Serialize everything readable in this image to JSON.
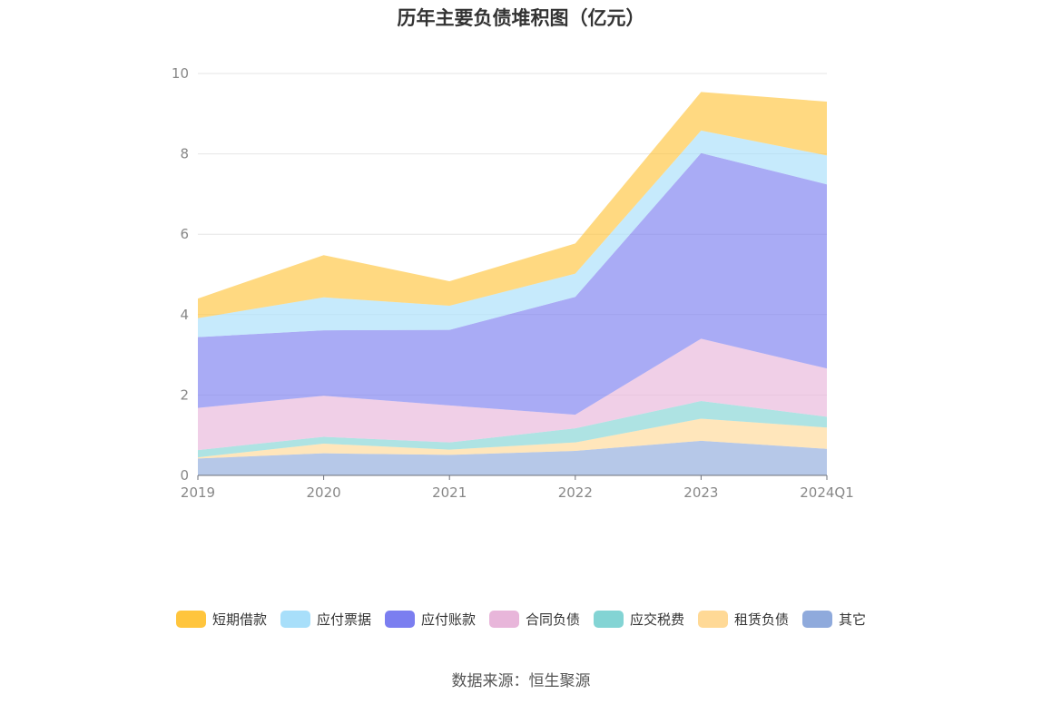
{
  "chart_data": {
    "type": "area",
    "stacked": true,
    "title": "历年主要负债堆积图（亿元）",
    "categories": [
      "2019",
      "2020",
      "2021",
      "2022",
      "2023",
      "2024Q1"
    ],
    "ylim": [
      0,
      10
    ],
    "yticks": [
      0,
      2,
      4,
      6,
      8,
      10
    ],
    "grid": true,
    "legend_position": "bottom",
    "series": [
      {
        "name": "其它",
        "color": "#8FAADC",
        "values": [
          0.42,
          0.55,
          0.51,
          0.61,
          0.86,
          0.66
        ]
      },
      {
        "name": "租赁负债",
        "color": "#FFD996",
        "values": [
          0.03,
          0.24,
          0.13,
          0.21,
          0.55,
          0.53
        ]
      },
      {
        "name": "应交税费",
        "color": "#83D4D4",
        "values": [
          0.18,
          0.17,
          0.18,
          0.35,
          0.44,
          0.27
        ]
      },
      {
        "name": "合同负债",
        "color": "#E8B6DA",
        "values": [
          1.05,
          1.02,
          0.92,
          0.34,
          1.55,
          1.2
        ]
      },
      {
        "name": "应付账款",
        "color": "#7B7EF0",
        "values": [
          1.76,
          1.63,
          1.88,
          2.93,
          4.62,
          4.58
        ]
      },
      {
        "name": "应付票据",
        "color": "#A8DFFA",
        "values": [
          0.47,
          0.82,
          0.6,
          0.58,
          0.56,
          0.72
        ]
      },
      {
        "name": "短期借款",
        "color": "#FFC53D",
        "values": [
          0.49,
          1.05,
          0.61,
          0.75,
          0.96,
          1.34
        ]
      }
    ]
  },
  "legend_order": [
    {
      "name": "短期借款",
      "color": "#FFC53D"
    },
    {
      "name": "应付票据",
      "color": "#A8DFFA"
    },
    {
      "name": "应付账款",
      "color": "#7B7EF0"
    },
    {
      "name": "合同负债",
      "color": "#E8B6DA"
    },
    {
      "name": "应交税费",
      "color": "#83D4D4"
    },
    {
      "name": "租赁负债",
      "color": "#FFD996"
    },
    {
      "name": "其它",
      "color": "#8FAADC"
    }
  ],
  "source": "数据来源：恒生聚源"
}
